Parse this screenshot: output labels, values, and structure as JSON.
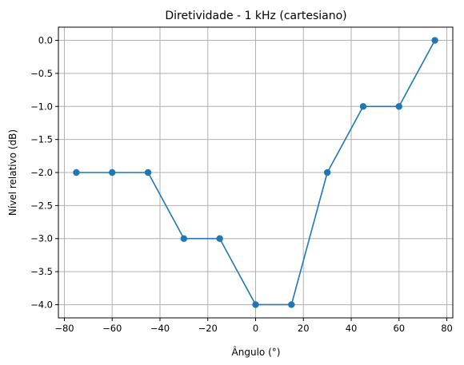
{
  "chart_data": {
    "type": "line",
    "title": "Diretividade - 1 kHz (cartesiano)",
    "xlabel": "Ângulo (°)",
    "ylabel": "Nível relativo (dB)",
    "xlim": [
      -82.5,
      82.5
    ],
    "ylim": [
      -4.2,
      0.2
    ],
    "xticks": [
      -80,
      -60,
      -40,
      -20,
      0,
      20,
      40,
      60,
      80
    ],
    "xtick_labels": [
      "−80",
      "−60",
      "−40",
      "−20",
      "0",
      "20",
      "40",
      "60",
      "80"
    ],
    "yticks": [
      0.0,
      -0.5,
      -1.0,
      -1.5,
      -2.0,
      -2.5,
      -3.0,
      -3.5,
      -4.0
    ],
    "ytick_labels": [
      "0.0",
      "−0.5",
      "−1.0",
      "−1.5",
      "−2.0",
      "−2.5",
      "−3.0",
      "−3.5",
      "−4.0"
    ],
    "grid": true,
    "x": [
      -75,
      -60,
      -45,
      -30,
      -15,
      0,
      15,
      30,
      45,
      60,
      75
    ],
    "series": [
      {
        "values": [
          -2,
          -2,
          -2,
          -3,
          -3,
          -4,
          -4,
          -2,
          -1,
          -1,
          0
        ],
        "color": "#1f77b4",
        "marker": "circle"
      }
    ]
  }
}
